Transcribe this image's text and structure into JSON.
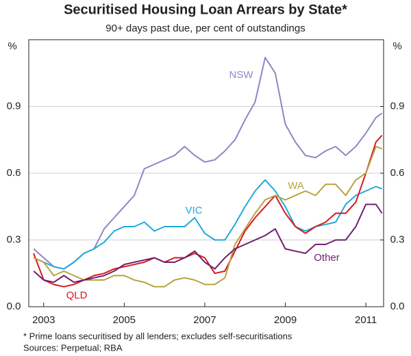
{
  "chart_data": {
    "type": "line",
    "title": "Securitised Housing Loan Arrears by State*",
    "subtitle": "90+ days past due, per cent of outstandings",
    "y_label": "%",
    "y2_label": "%",
    "footnote": "*   Prime loans securitised by all lenders; excludes self-securitisations",
    "source": "Sources: Perpetual; RBA",
    "x": [
      2002.75,
      2003,
      2003.25,
      2003.5,
      2003.75,
      2004,
      2004.25,
      2004.5,
      2004.75,
      2005,
      2005.25,
      2005.5,
      2005.75,
      2006,
      2006.25,
      2006.5,
      2006.75,
      2007,
      2007.25,
      2007.5,
      2007.75,
      2008,
      2008.25,
      2008.5,
      2008.75,
      2009,
      2009.25,
      2009.5,
      2009.75,
      2010,
      2010.25,
      2010.5,
      2010.75,
      2011,
      2011.25,
      2011.4
    ],
    "xlim": [
      2002.63,
      2011.44
    ],
    "xticks": [
      2003,
      2005,
      2007,
      2009,
      2011
    ],
    "ylim": [
      0,
      1.2
    ],
    "yticks": [
      {
        "value": 0,
        "label": "0.0"
      },
      0.3,
      0.6,
      0.9
    ],
    "y2lim": [
      0,
      1.2
    ],
    "y2ticks": [
      {
        "value": 0,
        "label": "0.0"
      },
      0.3,
      0.6,
      0.9
    ],
    "grid": true,
    "series": [
      {
        "name": "NSW",
        "color": "#8e86c6",
        "values": [
          0.26,
          0.22,
          0.18,
          0.17,
          0.2,
          0.24,
          0.26,
          0.35,
          0.4,
          0.45,
          0.5,
          0.62,
          0.64,
          0.66,
          0.68,
          0.72,
          0.68,
          0.65,
          0.66,
          0.7,
          0.75,
          0.84,
          0.92,
          1.12,
          1.05,
          0.82,
          0.74,
          0.68,
          0.67,
          0.7,
          0.72,
          0.68,
          0.72,
          0.78,
          0.85,
          0.87
        ]
      },
      {
        "name": "VIC",
        "color": "#1ea9dd",
        "values": [
          0.22,
          0.2,
          0.18,
          0.17,
          0.2,
          0.24,
          0.26,
          0.29,
          0.34,
          0.36,
          0.36,
          0.38,
          0.34,
          0.36,
          0.36,
          0.36,
          0.4,
          0.33,
          0.3,
          0.3,
          0.37,
          0.45,
          0.52,
          0.57,
          0.52,
          0.45,
          0.36,
          0.34,
          0.36,
          0.37,
          0.38,
          0.46,
          0.5,
          0.52,
          0.54,
          0.53
        ]
      },
      {
        "name": "QLD",
        "color": "#d71920",
        "values": [
          0.24,
          0.12,
          0.1,
          0.09,
          0.1,
          0.12,
          0.14,
          0.15,
          0.17,
          0.18,
          0.19,
          0.2,
          0.22,
          0.2,
          0.22,
          0.22,
          0.24,
          0.22,
          0.15,
          0.16,
          0.25,
          0.34,
          0.4,
          0.45,
          0.5,
          0.42,
          0.36,
          0.33,
          0.36,
          0.38,
          0.42,
          0.42,
          0.47,
          0.6,
          0.74,
          0.77
        ]
      },
      {
        "name": "WA",
        "color": "#b8a23c",
        "values": [
          0.22,
          0.2,
          0.14,
          0.16,
          0.14,
          0.12,
          0.12,
          0.12,
          0.14,
          0.14,
          0.12,
          0.11,
          0.09,
          0.09,
          0.12,
          0.13,
          0.12,
          0.1,
          0.1,
          0.13,
          0.28,
          0.35,
          0.42,
          0.48,
          0.5,
          0.48,
          0.5,
          0.52,
          0.5,
          0.55,
          0.55,
          0.5,
          0.57,
          0.6,
          0.72,
          0.71
        ]
      },
      {
        "name": "Other",
        "color": "#6d1f6e",
        "values": [
          0.16,
          0.12,
          0.11,
          0.14,
          0.11,
          0.12,
          0.13,
          0.14,
          0.16,
          0.19,
          0.2,
          0.21,
          0.22,
          0.2,
          0.2,
          0.22,
          0.25,
          0.2,
          0.17,
          0.22,
          0.26,
          0.28,
          0.3,
          0.32,
          0.35,
          0.26,
          0.25,
          0.24,
          0.28,
          0.28,
          0.3,
          0.3,
          0.36,
          0.46,
          0.46,
          0.42
        ]
      }
    ]
  }
}
